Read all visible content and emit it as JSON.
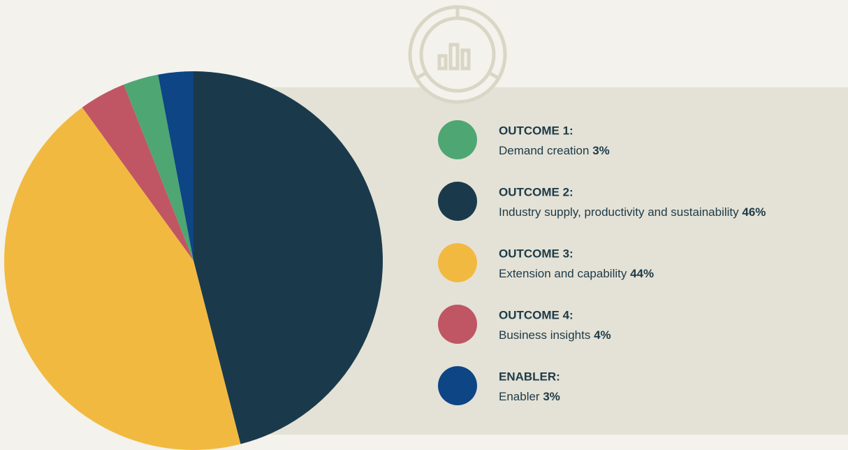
{
  "chart_data": {
    "type": "pie",
    "categories": [
      "OUTCOME 2:",
      "OUTCOME 3:",
      "OUTCOME 4:",
      "OUTCOME 1:",
      "ENABLER:"
    ],
    "descriptions": [
      "Industry supply, productivity and sustainability",
      "Extension and capability",
      "Business insights",
      "Demand creation",
      "Enabler"
    ],
    "values": [
      46,
      44,
      4,
      3,
      3
    ],
    "value_labels": [
      "46%",
      "44%",
      "4%",
      "3%",
      "3%"
    ],
    "colors": [
      "#1a3a4c",
      "#f2b940",
      "#c05663",
      "#4ea673",
      "#0e4585"
    ]
  }
}
